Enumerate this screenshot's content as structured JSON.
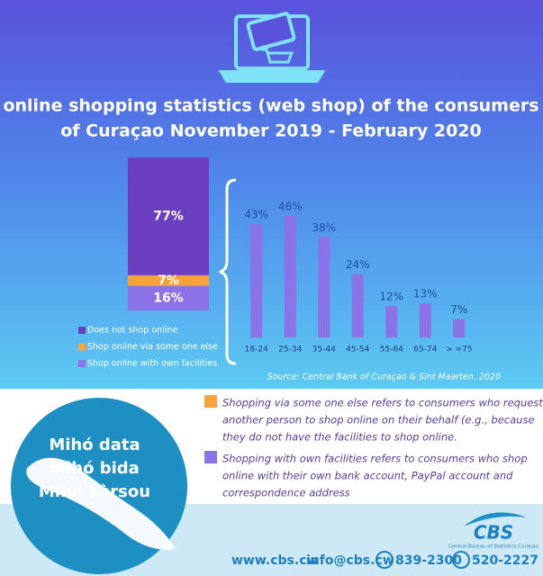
{
  "header": {
    "title_lines": [
      "online shopping statistics (web shop) of the consumers",
      "of Curaçao November 2019 - February 2020"
    ]
  },
  "chart_data": [
    {
      "type": "stacked-bar",
      "series": [
        {
          "name": "Does not shop online",
          "color": "#6b3fbf",
          "values": [
            77
          ],
          "value_labels": [
            "77%"
          ]
        },
        {
          "name": "Shop online via some one else",
          "color": "#f7a23a",
          "values": [
            7
          ],
          "value_labels": [
            "7%"
          ]
        },
        {
          "name": "Shop online with own facilities",
          "color": "#8b72e6",
          "values": [
            16
          ],
          "value_labels": [
            "16%"
          ]
        }
      ]
    },
    {
      "type": "bar",
      "categories": [
        "18-24",
        "25-34",
        "35-44",
        "45-54",
        "55-64",
        "65-74",
        "> =75"
      ],
      "values": [
        43,
        46,
        38,
        24,
        12,
        13,
        7
      ],
      "value_labels": [
        "43%",
        "46%",
        "38%",
        "24%",
        "12%",
        "13%",
        "7%"
      ],
      "color": "#8b72e6",
      "source": "Source: Central Bank of Curaçao & Sint Maarten. 2020"
    }
  ],
  "notes": [
    {
      "color": "#f7a23a",
      "lines": [
        "Shopping via some one else refers to consumers who request",
        "another person to shop online on their behalf (e.g., because",
        "they do not have the facilities to shop online."
      ]
    },
    {
      "color": "#8b72e6",
      "lines": [
        "Shopping with own facilities refers to consumers who shop",
        "online with their own bank account, PayPal account and",
        "correspondence address"
      ]
    }
  ],
  "slogan": [
    "Mihó data",
    "Mihó bida",
    "Mihó kòrsou"
  ],
  "logo": {
    "name": "CBS",
    "subtitle": "Central Bureau of Statistics Curaçao"
  },
  "footer": {
    "website": "www.cbs.cw",
    "email": "info@cbs.cw",
    "phones": [
      "839-2300",
      "520-2227"
    ]
  }
}
